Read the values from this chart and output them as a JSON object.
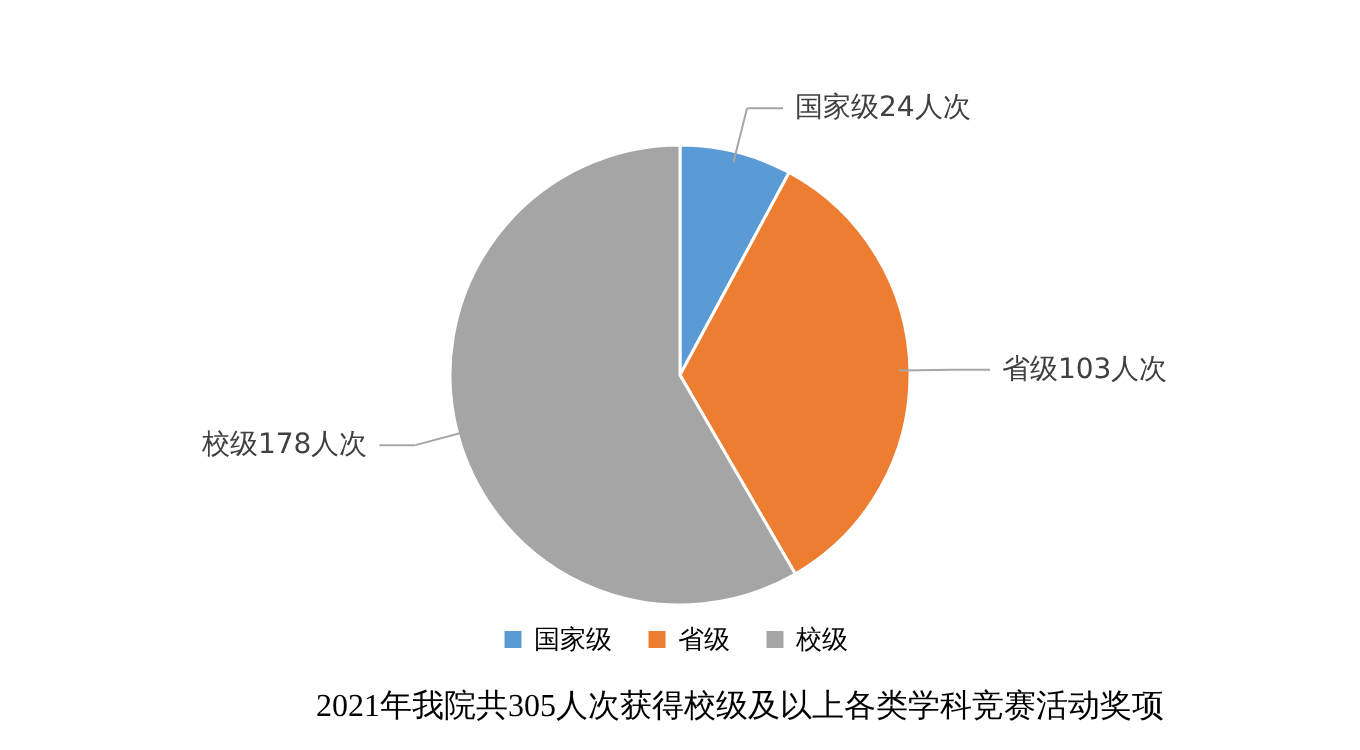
{
  "chart_data": {
    "type": "pie",
    "title": "2021年我院共305人次获得校级及以上各类学科竞赛活动奖项",
    "categories": [
      "国家级",
      "省级",
      "校级"
    ],
    "values": [
      24,
      103,
      178
    ],
    "colors": [
      "#5b9bd5",
      "#ed7d31",
      "#a5a5a5"
    ],
    "value_labels": [
      "国家级24人次",
      "省级103人次",
      "校级178人次"
    ],
    "legend": "bottom"
  }
}
